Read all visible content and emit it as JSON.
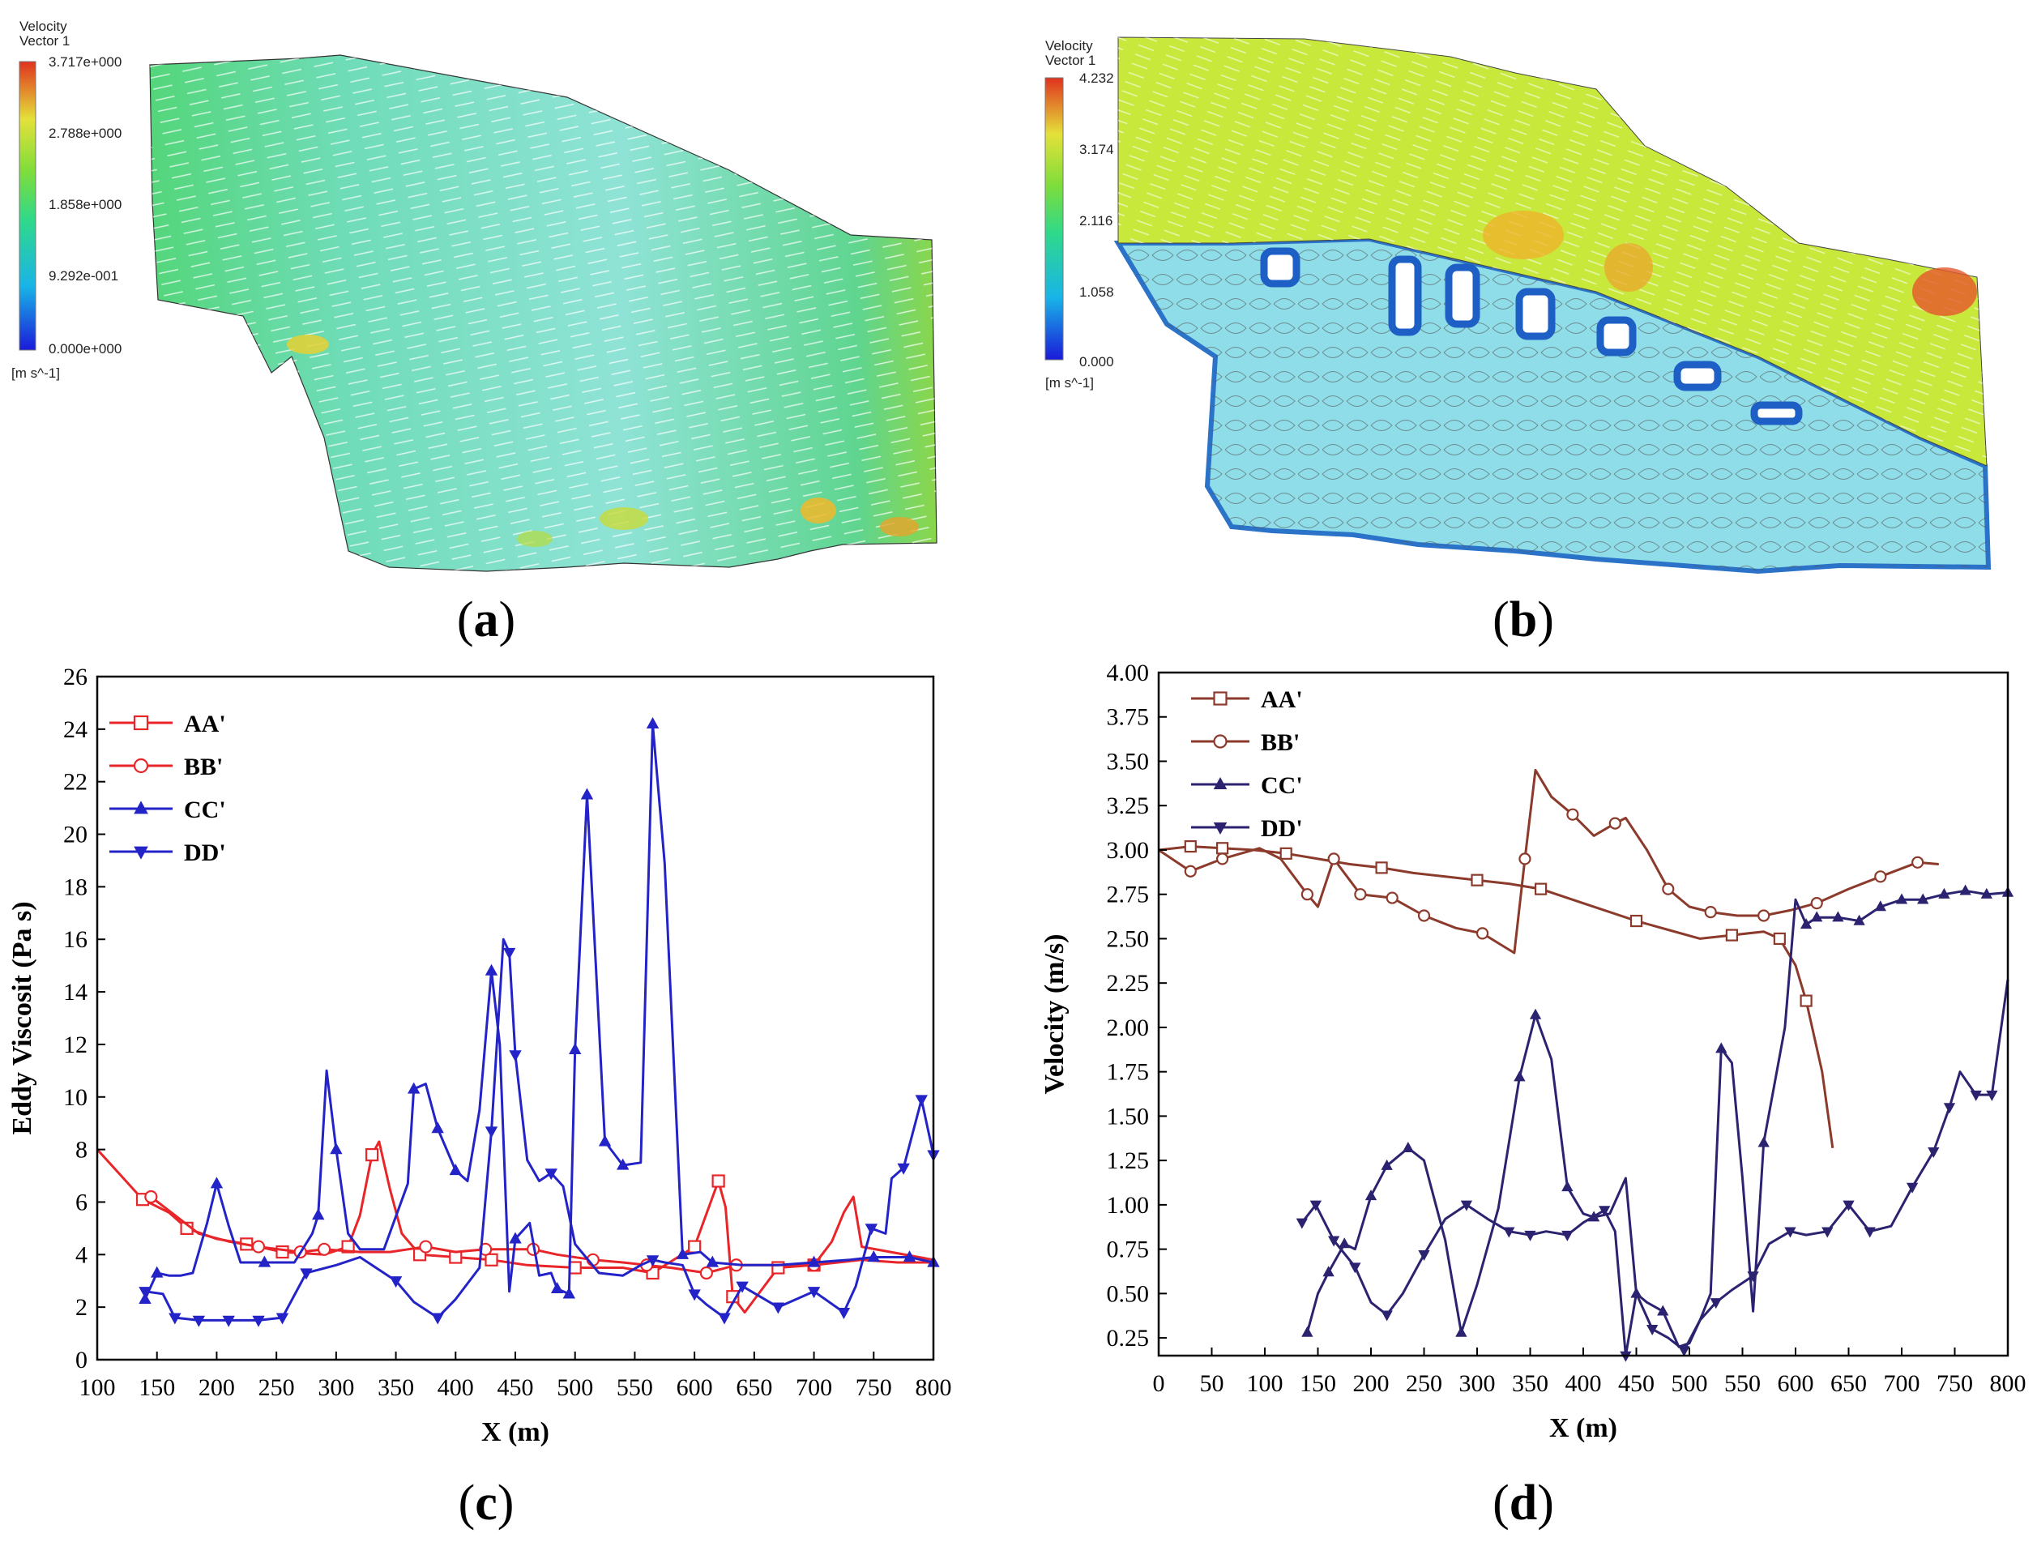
{
  "panels": {
    "a": {
      "label": "a",
      "legend_title": [
        "Velocity",
        "Vector 1"
      ],
      "ticks": [
        "3.717e+000",
        "2.788e+000",
        "1.858e+000",
        "9.292e-001",
        "0.000e+000"
      ],
      "unit": "[m s^-1]"
    },
    "b": {
      "label": "b",
      "legend_title": [
        "Velocity",
        "Vector 1"
      ],
      "ticks": [
        "4.232",
        "3.174",
        "2.116",
        "1.058",
        "0.000"
      ],
      "unit": "[m s^-1]"
    },
    "c": {
      "label": "c"
    },
    "d": {
      "label": "d"
    }
  },
  "chart_data": [
    {
      "id": "c",
      "type": "line",
      "xlabel": "X (m)",
      "ylabel": "Eddy Viscosit (Pa s)",
      "xlim": [
        100,
        800
      ],
      "ylim": [
        0,
        26
      ],
      "xticks": [
        100,
        150,
        200,
        250,
        300,
        350,
        400,
        450,
        500,
        550,
        600,
        650,
        700,
        750,
        800
      ],
      "yticks": [
        0,
        2,
        4,
        6,
        8,
        10,
        12,
        14,
        16,
        18,
        20,
        22,
        24,
        26
      ],
      "legend_position": "top-left",
      "series": [
        {
          "name": "AA'",
          "color": "#e8262a",
          "marker": "square",
          "x": [
            100,
            120,
            138,
            160,
            175,
            200,
            225,
            255,
            290,
            310,
            320,
            330,
            336,
            345,
            355,
            370,
            400,
            430,
            460,
            500,
            540,
            565,
            600,
            620,
            626,
            632,
            642,
            670,
            700,
            715,
            725,
            733,
            740,
            800
          ],
          "y": [
            8.0,
            7.0,
            6.1,
            5.6,
            5.0,
            4.6,
            4.4,
            4.1,
            4.0,
            4.3,
            5.5,
            7.8,
            8.3,
            6.5,
            4.8,
            4.0,
            3.9,
            3.8,
            3.6,
            3.5,
            3.5,
            3.3,
            4.3,
            6.8,
            5.8,
            2.4,
            1.8,
            3.5,
            3.6,
            4.5,
            5.6,
            6.2,
            4.3,
            3.8
          ],
          "marker_idx": [
            2,
            4,
            6,
            7,
            9,
            11,
            15,
            16,
            17,
            19,
            21,
            22,
            23,
            25,
            27,
            28
          ]
        },
        {
          "name": "BB'",
          "color": "#e8262a",
          "marker": "circle",
          "x": [
            145,
            165,
            185,
            210,
            235,
            270,
            290,
            320,
            345,
            375,
            400,
            425,
            445,
            465,
            485,
            515,
            540,
            560,
            580,
            610,
            635,
            665,
            700,
            740,
            770,
            800
          ],
          "y": [
            6.2,
            5.5,
            4.8,
            4.5,
            4.3,
            4.1,
            4.2,
            4.1,
            4.1,
            4.3,
            4.1,
            4.2,
            4.2,
            4.2,
            4.0,
            3.8,
            3.7,
            3.6,
            3.5,
            3.3,
            3.6,
            3.6,
            3.6,
            3.8,
            3.7,
            3.7
          ],
          "marker_idx": [
            0,
            4,
            5,
            6,
            9,
            11,
            13,
            15,
            17,
            19,
            20,
            22
          ]
        },
        {
          "name": "CC'",
          "color": "#2323c8",
          "marker": "triangle-up",
          "x": [
            140,
            150,
            160,
            170,
            180,
            192,
            200,
            210,
            220,
            240,
            265,
            280,
            285,
            292,
            300,
            310,
            320,
            340,
            360,
            365,
            375,
            385,
            400,
            410,
            420,
            430,
            437,
            445,
            450,
            462,
            470,
            480,
            485,
            495,
            500,
            510,
            525,
            540,
            555,
            565,
            575,
            590,
            605,
            615,
            640,
            670,
            700,
            730,
            750,
            760,
            780,
            800
          ],
          "y": [
            2.3,
            3.3,
            3.2,
            3.2,
            3.3,
            5.2,
            6.7,
            5.1,
            3.7,
            3.7,
            3.7,
            4.8,
            5.5,
            11.0,
            8.0,
            4.8,
            4.2,
            4.2,
            6.7,
            10.3,
            10.5,
            8.8,
            7.2,
            6.8,
            9.5,
            14.8,
            12.0,
            2.6,
            4.6,
            5.2,
            3.2,
            3.3,
            2.7,
            2.5,
            11.8,
            21.5,
            8.3,
            7.4,
            7.5,
            24.2,
            18.9,
            4.0,
            4.1,
            3.7,
            3.6,
            3.6,
            3.7,
            3.8,
            3.9,
            3.9,
            3.9,
            3.7
          ],
          "marker_idx": [
            0,
            1,
            6,
            9,
            12,
            14,
            19,
            21,
            22,
            25,
            28,
            32,
            33,
            34,
            35,
            36,
            37,
            39,
            41,
            43,
            46,
            48,
            50,
            51
          ]
        },
        {
          "name": "DD'",
          "color": "#2323c8",
          "marker": "triangle-down",
          "x": [
            140,
            155,
            165,
            185,
            210,
            235,
            255,
            275,
            300,
            320,
            350,
            365,
            385,
            400,
            420,
            430,
            440,
            445,
            450,
            460,
            470,
            480,
            490,
            500,
            520,
            540,
            555,
            565,
            575,
            590,
            600,
            610,
            625,
            640,
            670,
            700,
            725,
            735,
            748,
            760,
            765,
            775,
            790,
            800
          ],
          "y": [
            2.6,
            2.5,
            1.6,
            1.5,
            1.5,
            1.5,
            1.6,
            3.3,
            3.6,
            3.9,
            3.0,
            2.2,
            1.6,
            2.3,
            3.5,
            8.7,
            16.0,
            15.5,
            11.6,
            7.6,
            6.8,
            7.1,
            6.6,
            4.4,
            3.3,
            3.2,
            3.6,
            3.8,
            3.7,
            3.6,
            2.5,
            2.1,
            1.6,
            2.8,
            2.0,
            2.6,
            1.8,
            2.8,
            5.0,
            4.8,
            6.9,
            7.3,
            9.9,
            7.8
          ],
          "marker_idx": [
            0,
            2,
            3,
            4,
            5,
            6,
            7,
            10,
            12,
            15,
            17,
            18,
            21,
            27,
            30,
            32,
            33,
            34,
            35,
            36,
            38,
            41,
            42,
            43
          ]
        }
      ]
    },
    {
      "id": "d",
      "type": "line",
      "xlabel": "X (m)",
      "ylabel": "Velocity (m/s)",
      "xlim": [
        0,
        800
      ],
      "ylim": [
        0.15,
        4.0
      ],
      "xticks": [
        0,
        50,
        100,
        150,
        200,
        250,
        300,
        350,
        400,
        450,
        500,
        550,
        600,
        650,
        700,
        750,
        800
      ],
      "yticks": [
        0.25,
        0.5,
        0.75,
        1.0,
        1.25,
        1.5,
        1.75,
        2.0,
        2.25,
        2.5,
        2.75,
        3.0,
        3.25,
        3.5,
        3.75,
        4.0
      ],
      "ytick_labels": [
        "0.25",
        "0.50",
        "0.75",
        "1.00",
        "1.25",
        "1.50",
        "1.75",
        "2.00",
        "2.25",
        "2.50",
        "2.75",
        "3.00",
        "3.25",
        "3.50",
        "3.75",
        "4.00"
      ],
      "legend_position": "top-left",
      "series": [
        {
          "name": "AA'",
          "color": "#8b3a2b",
          "marker": "square",
          "x": [
            0,
            30,
            60,
            90,
            120,
            150,
            180,
            210,
            240,
            270,
            300,
            330,
            360,
            390,
            420,
            450,
            480,
            510,
            540,
            570,
            585,
            600,
            610,
            625,
            635
          ],
          "y": [
            3.0,
            3.02,
            3.01,
            3.0,
            2.98,
            2.95,
            2.92,
            2.9,
            2.87,
            2.85,
            2.83,
            2.81,
            2.78,
            2.72,
            2.66,
            2.6,
            2.55,
            2.5,
            2.52,
            2.54,
            2.5,
            2.35,
            2.15,
            1.75,
            1.32
          ],
          "marker_idx": [
            1,
            2,
            4,
            7,
            10,
            12,
            15,
            18,
            20,
            22
          ]
        },
        {
          "name": "BB'",
          "color": "#8b3a2b",
          "marker": "circle",
          "x": [
            0,
            30,
            60,
            95,
            115,
            140,
            150,
            165,
            190,
            220,
            250,
            280,
            305,
            335,
            345,
            355,
            370,
            390,
            410,
            430,
            440,
            460,
            480,
            500,
            520,
            545,
            570,
            595,
            620,
            650,
            680,
            715,
            735
          ],
          "y": [
            3.0,
            2.88,
            2.95,
            3.01,
            2.95,
            2.75,
            2.68,
            2.95,
            2.75,
            2.73,
            2.63,
            2.56,
            2.53,
            2.42,
            2.95,
            3.45,
            3.3,
            3.2,
            3.08,
            3.15,
            3.18,
            3.0,
            2.78,
            2.68,
            2.65,
            2.63,
            2.63,
            2.66,
            2.7,
            2.78,
            2.85,
            2.93,
            2.92
          ],
          "marker_idx": [
            1,
            2,
            5,
            7,
            8,
            9,
            10,
            12,
            14,
            17,
            19,
            22,
            24,
            26,
            28,
            30,
            31
          ]
        },
        {
          "name": "CC'",
          "color": "#2b2370",
          "marker": "triangle-up",
          "x": [
            140,
            150,
            160,
            175,
            185,
            200,
            215,
            235,
            250,
            270,
            285,
            300,
            320,
            340,
            355,
            370,
            385,
            400,
            410,
            425,
            440,
            450,
            460,
            475,
            490,
            500,
            510,
            520,
            530,
            540,
            550,
            560,
            570,
            590,
            600,
            610,
            620,
            640,
            660,
            680,
            700,
            720,
            740,
            760,
            780,
            800
          ],
          "y": [
            0.28,
            0.5,
            0.62,
            0.78,
            0.75,
            1.05,
            1.22,
            1.32,
            1.25,
            0.8,
            0.28,
            0.55,
            0.98,
            1.72,
            2.07,
            1.82,
            1.1,
            0.95,
            0.93,
            0.95,
            1.15,
            0.5,
            0.45,
            0.4,
            0.2,
            0.22,
            0.35,
            0.5,
            1.88,
            1.8,
            1.15,
            0.4,
            1.35,
            2.0,
            2.72,
            2.58,
            2.62,
            2.62,
            2.6,
            2.68,
            2.72,
            2.72,
            2.75,
            2.77,
            2.75,
            2.76
          ],
          "marker_idx": [
            0,
            2,
            3,
            5,
            6,
            7,
            10,
            13,
            14,
            16,
            18,
            21,
            23,
            28,
            32,
            35,
            36,
            37,
            38,
            39,
            40,
            41,
            42,
            43,
            44,
            45
          ]
        },
        {
          "name": "DD'",
          "color": "#2b2370",
          "marker": "triangle-down",
          "x": [
            135,
            148,
            165,
            185,
            200,
            215,
            230,
            250,
            270,
            290,
            310,
            330,
            350,
            365,
            385,
            400,
            420,
            430,
            440,
            450,
            465,
            480,
            495,
            510,
            525,
            540,
            560,
            575,
            595,
            610,
            630,
            650,
            670,
            690,
            710,
            730,
            745,
            755,
            770,
            785,
            800
          ],
          "y": [
            0.9,
            1.0,
            0.8,
            0.65,
            0.45,
            0.38,
            0.5,
            0.72,
            0.92,
            1.0,
            0.92,
            0.85,
            0.83,
            0.85,
            0.83,
            0.9,
            0.97,
            0.85,
            0.15,
            0.5,
            0.3,
            0.25,
            0.18,
            0.35,
            0.45,
            0.52,
            0.6,
            0.78,
            0.85,
            0.83,
            0.85,
            1.0,
            0.85,
            0.88,
            1.1,
            1.3,
            1.55,
            1.75,
            1.62,
            1.62,
            2.27
          ],
          "marker_idx": [
            0,
            1,
            2,
            3,
            5,
            7,
            9,
            11,
            12,
            14,
            16,
            18,
            20,
            22,
            24,
            26,
            28,
            30,
            31,
            32,
            34,
            35,
            36,
            38,
            39
          ]
        }
      ]
    }
  ]
}
